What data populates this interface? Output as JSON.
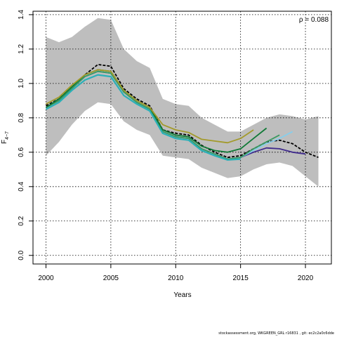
{
  "chart_data": {
    "type": "line",
    "xlabel": "Years",
    "ylabel": "F",
    "ylabel_sub": "4−7",
    "xlim": [
      1999,
      2022
    ],
    "ylim": [
      -0.05,
      1.42
    ],
    "x_ticks": [
      2000,
      2005,
      2010,
      2015,
      2020
    ],
    "y_ticks": [
      0.0,
      0.2,
      0.4,
      0.6,
      0.8,
      1.0,
      1.2,
      1.4
    ],
    "y_tick_labels": [
      "0.0",
      "0.2",
      "0.4",
      "0.6",
      "0.8",
      "1.0",
      "1.2",
      "1.4"
    ],
    "grid": true,
    "annotation": "ρ = 0.088",
    "band": {
      "color": "#bebebe",
      "x": [
        2000,
        2001,
        2002,
        2003,
        2004,
        2005,
        2006,
        2007,
        2008,
        2009,
        2010,
        2011,
        2012,
        2013,
        2014,
        2015,
        2016,
        2017,
        2018,
        2019,
        2020,
        2021
      ],
      "upper": [
        1.27,
        1.24,
        1.27,
        1.33,
        1.38,
        1.37,
        1.2,
        1.13,
        1.09,
        0.91,
        0.88,
        0.87,
        0.8,
        0.76,
        0.72,
        0.72,
        0.76,
        0.8,
        0.82,
        0.81,
        0.79,
        0.81
      ],
      "lower": [
        0.58,
        0.66,
        0.76,
        0.84,
        0.89,
        0.88,
        0.78,
        0.73,
        0.7,
        0.58,
        0.57,
        0.56,
        0.51,
        0.48,
        0.45,
        0.46,
        0.5,
        0.53,
        0.54,
        0.52,
        0.46,
        0.4
      ]
    },
    "series": [
      {
        "color": "#000000",
        "dashed": true,
        "width": 1.8,
        "x": [
          2000,
          2001,
          2002,
          2003,
          2004,
          2005,
          2006,
          2007,
          2008,
          2009,
          2010,
          2011,
          2012,
          2013,
          2014,
          2015,
          2016,
          2017,
          2018,
          2019,
          2020,
          2021
        ],
        "values": [
          0.87,
          0.91,
          0.98,
          1.05,
          1.11,
          1.1,
          0.97,
          0.91,
          0.87,
          0.73,
          0.71,
          0.7,
          0.64,
          0.6,
          0.57,
          0.58,
          0.62,
          0.66,
          0.67,
          0.65,
          0.6,
          0.57
        ]
      },
      {
        "color": "#3f2a8c",
        "dashed": false,
        "width": 1.8,
        "x": [
          2000,
          2001,
          2002,
          2003,
          2004,
          2005,
          2006,
          2007,
          2008,
          2009,
          2010,
          2011,
          2012,
          2013,
          2014,
          2015,
          2016,
          2017,
          2018,
          2019,
          2020
        ],
        "values": [
          0.86,
          0.9,
          0.97,
          1.04,
          1.07,
          1.06,
          0.95,
          0.89,
          0.85,
          0.72,
          0.69,
          0.68,
          0.62,
          0.59,
          0.56,
          0.57,
          0.6,
          0.625,
          0.62,
          0.6,
          0.59
        ]
      },
      {
        "color": "#87ceeb",
        "dashed": false,
        "width": 1.8,
        "x": [
          2000,
          2001,
          2002,
          2003,
          2004,
          2005,
          2006,
          2007,
          2008,
          2009,
          2010,
          2011,
          2012,
          2013,
          2014,
          2015,
          2016,
          2017,
          2018,
          2019
        ],
        "values": [
          0.86,
          0.9,
          0.97,
          1.04,
          1.07,
          1.06,
          0.95,
          0.89,
          0.85,
          0.72,
          0.69,
          0.68,
          0.62,
          0.59,
          0.56,
          0.57,
          0.61,
          0.65,
          0.68,
          0.72
        ]
      },
      {
        "color": "#3a9a62",
        "dashed": false,
        "width": 1.8,
        "x": [
          2000,
          2001,
          2002,
          2003,
          2004,
          2005,
          2006,
          2007,
          2008,
          2009,
          2010,
          2011,
          2012,
          2013,
          2014,
          2015,
          2016,
          2017,
          2018
        ],
        "values": [
          0.86,
          0.9,
          0.97,
          1.04,
          1.07,
          1.06,
          0.95,
          0.89,
          0.85,
          0.72,
          0.69,
          0.68,
          0.62,
          0.59,
          0.56,
          0.57,
          0.62,
          0.66,
          0.7
        ]
      },
      {
        "color": "#117a37",
        "dashed": false,
        "width": 1.8,
        "x": [
          2000,
          2001,
          2002,
          2003,
          2004,
          2005,
          2006,
          2007,
          2008,
          2009,
          2010,
          2011,
          2012,
          2013,
          2014,
          2015,
          2016,
          2017
        ],
        "values": [
          0.86,
          0.91,
          0.98,
          1.05,
          1.08,
          1.07,
          0.96,
          0.9,
          0.86,
          0.73,
          0.7,
          0.69,
          0.635,
          0.61,
          0.6,
          0.62,
          0.68,
          0.74
        ]
      },
      {
        "color": "#a39a2b",
        "dashed": false,
        "width": 1.8,
        "x": [
          2000,
          2001,
          2002,
          2003,
          2004,
          2005,
          2006,
          2007,
          2008,
          2009,
          2010,
          2011,
          2012,
          2013,
          2014,
          2015,
          2016
        ],
        "values": [
          0.88,
          0.92,
          0.99,
          1.05,
          1.08,
          1.07,
          0.96,
          0.9,
          0.86,
          0.76,
          0.73,
          0.715,
          0.675,
          0.665,
          0.655,
          0.68,
          0.73
        ]
      },
      {
        "color": "#2ab0b8",
        "dashed": false,
        "width": 2.2,
        "x": [
          2000,
          2001,
          2002,
          2003,
          2004,
          2005,
          2006,
          2007,
          2008,
          2009,
          2010,
          2011,
          2012,
          2013,
          2014,
          2015
        ],
        "values": [
          0.85,
          0.89,
          0.96,
          1.02,
          1.05,
          1.04,
          0.93,
          0.88,
          0.84,
          0.71,
          0.68,
          0.67,
          0.61,
          0.58,
          0.555,
          0.56
        ]
      }
    ]
  },
  "footer": "stockassessment.org,  WKGREEN_GRL r16831 ,  git: ec2c2a0c6dde"
}
